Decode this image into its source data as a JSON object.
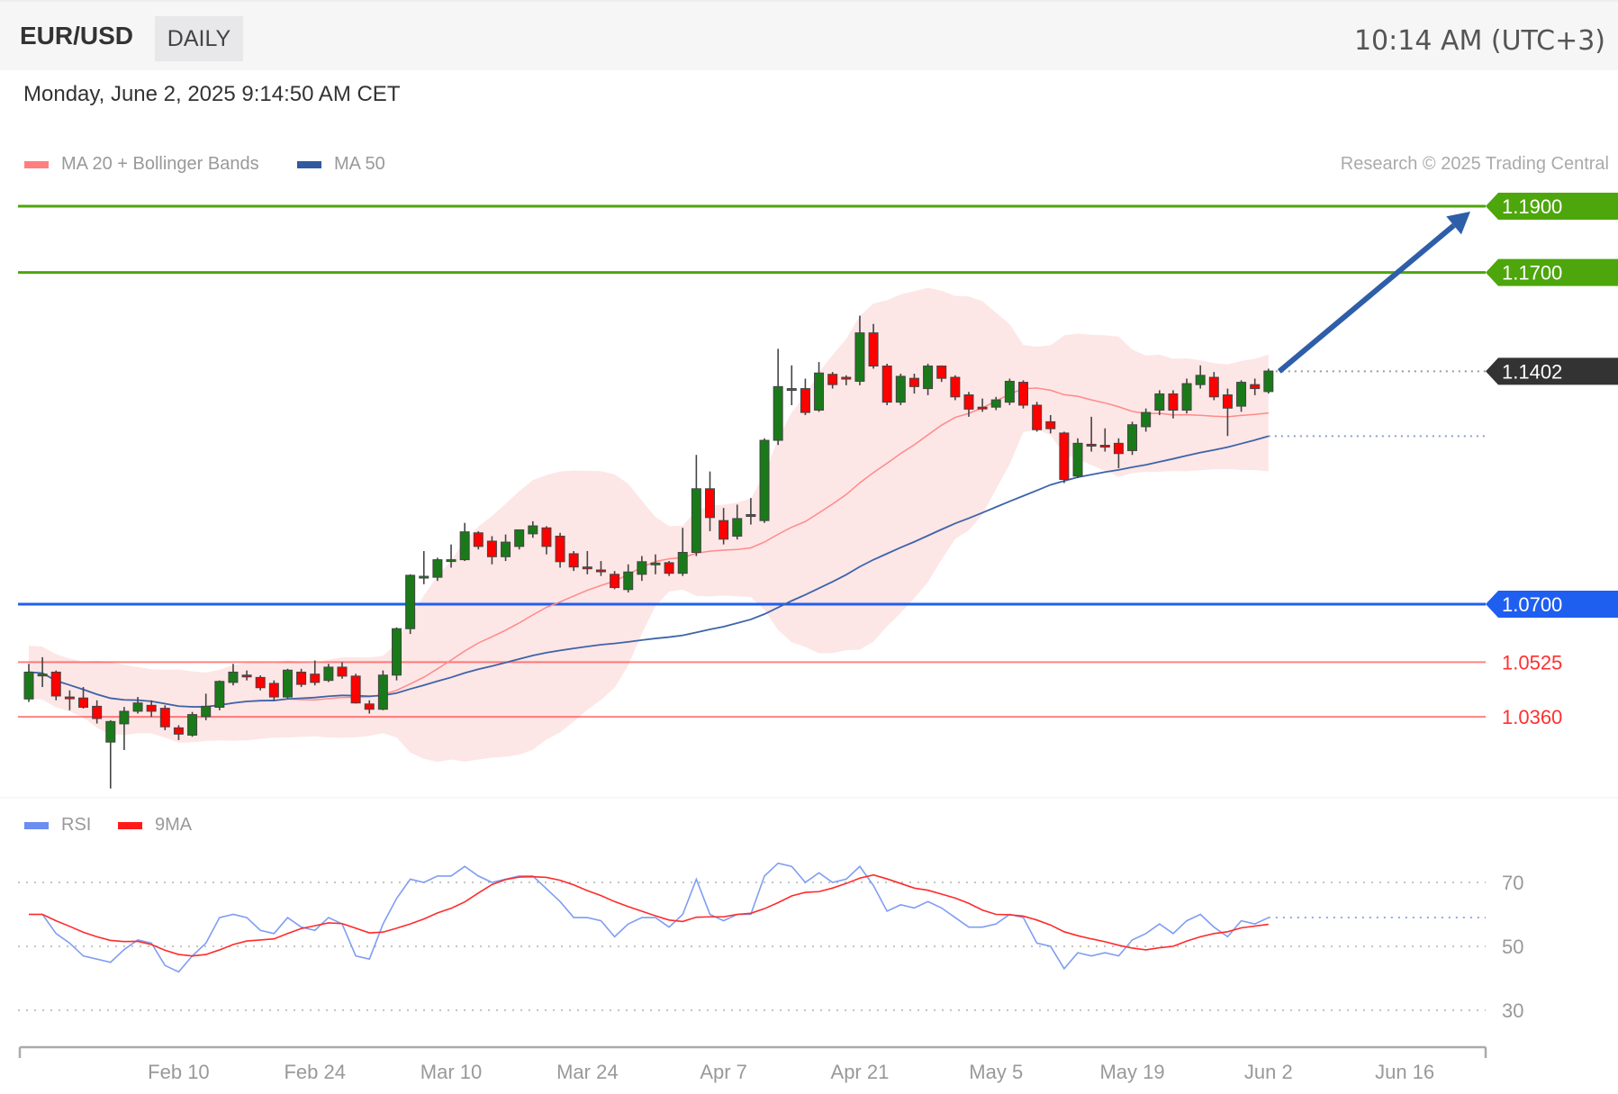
{
  "header": {
    "symbol": "EUR/USD",
    "period": "DAILY",
    "clock": "10:14 AM (UTC+3)"
  },
  "date_line": "Monday, June 2, 2025 9:14:50 AM CET",
  "legend": [
    {
      "label": "MA 20 + Bollinger Bands",
      "color": "#ff7f7f"
    },
    {
      "label": "MA 50",
      "color": "#2f5aa0"
    }
  ],
  "rsi_legend": [
    {
      "label": "RSI",
      "color": "#6b8ef0"
    },
    {
      "label": "9MA",
      "color": "#ff1a1a"
    }
  ],
  "copyright": "Research © 2025 Trading Central",
  "colors": {
    "up": "#1a7a1a",
    "down": "#ff0000",
    "band": "#fde3e3",
    "ma20": "#ff8a8a",
    "ma50": "#3d64a8",
    "arrow": "#2e5ea8"
  },
  "chart_data": [
    {
      "type": "candlestick",
      "title": "EUR/USD",
      "timeframe": "DAILY",
      "ylim": [
        1.005,
        1.19
      ],
      "x_ticks": [
        "Feb 10",
        "Feb 24",
        "Mar 10",
        "Mar 24",
        "Apr 7",
        "Apr 21",
        "May 5",
        "May 19",
        "Jun 2",
        "Jun 16"
      ],
      "x_tick_index": [
        11,
        21,
        31,
        41,
        51,
        61,
        71,
        81,
        91,
        101
      ],
      "ohlc": [
        [
          1.0414,
          1.052,
          1.0405,
          1.0495
        ],
        [
          1.0486,
          1.054,
          1.045,
          1.0489
        ],
        [
          1.0495,
          1.05,
          1.041,
          1.0423
        ],
        [
          1.042,
          1.044,
          1.038,
          1.0417
        ],
        [
          1.0417,
          1.045,
          1.0385,
          1.0389
        ],
        [
          1.0392,
          1.041,
          1.034,
          1.0355
        ],
        [
          1.0284,
          1.035,
          1.0144,
          1.0346
        ],
        [
          1.0339,
          1.039,
          1.026,
          1.0377
        ],
        [
          1.0377,
          1.042,
          1.037,
          1.0402
        ],
        [
          1.0395,
          1.041,
          1.036,
          1.0377
        ],
        [
          1.0386,
          1.0395,
          1.032,
          1.033
        ],
        [
          1.0327,
          1.0335,
          1.029,
          1.0308
        ],
        [
          1.0305,
          1.0375,
          1.03,
          1.0367
        ],
        [
          1.0361,
          1.043,
          1.035,
          1.0392
        ],
        [
          1.0389,
          1.047,
          1.038,
          1.0467
        ],
        [
          1.0464,
          1.052,
          1.0455,
          1.0495
        ],
        [
          1.0486,
          1.05,
          1.047,
          1.0483
        ],
        [
          1.0479,
          1.0485,
          1.044,
          1.0448
        ],
        [
          1.0461,
          1.047,
          1.041,
          1.042
        ],
        [
          1.042,
          1.0505,
          1.0415,
          1.0501
        ],
        [
          1.0495,
          1.0505,
          1.045,
          1.0458
        ],
        [
          1.0489,
          1.053,
          1.0455,
          1.0464
        ],
        [
          1.047,
          1.052,
          1.0465,
          1.051
        ],
        [
          1.051,
          1.0525,
          1.0475,
          1.0483
        ],
        [
          1.0483,
          1.049,
          1.04,
          1.0402
        ],
        [
          1.0399,
          1.041,
          1.037,
          1.0383
        ],
        [
          1.0383,
          1.05,
          1.038,
          1.0486
        ],
        [
          1.0486,
          1.063,
          1.047,
          1.0626
        ],
        [
          1.0626,
          1.079,
          1.061,
          1.0787
        ],
        [
          1.0781,
          1.086,
          1.076,
          1.0784
        ],
        [
          1.0781,
          1.084,
          1.077,
          1.0834
        ],
        [
          1.0831,
          1.088,
          1.081,
          1.0834
        ],
        [
          1.0834,
          1.0945,
          1.083,
          1.0918
        ],
        [
          1.0915,
          1.092,
          1.0865,
          1.0874
        ],
        [
          1.089,
          1.0905,
          1.082,
          1.0843
        ],
        [
          1.0843,
          1.091,
          1.083,
          1.0887
        ],
        [
          1.0874,
          1.0925,
          1.0865,
          1.0924
        ],
        [
          1.0912,
          1.095,
          1.09,
          1.0936
        ],
        [
          1.093,
          1.0935,
          1.085,
          1.0874
        ],
        [
          1.0905,
          1.0915,
          1.081,
          1.0828
        ],
        [
          1.0852,
          1.086,
          1.08,
          1.0812
        ],
        [
          1.0812,
          1.086,
          1.079,
          1.0809
        ],
        [
          1.0803,
          1.083,
          1.0785,
          1.08
        ],
        [
          1.079,
          1.08,
          1.0745,
          1.075
        ],
        [
          1.0744,
          1.082,
          1.0735,
          1.0797
        ],
        [
          1.079,
          1.0845,
          1.077,
          1.0828
        ],
        [
          1.0821,
          1.085,
          1.079,
          1.0824
        ],
        [
          1.0825,
          1.083,
          1.0785,
          1.0793
        ],
        [
          1.0793,
          1.093,
          1.0785,
          1.0856
        ],
        [
          1.0856,
          1.115,
          1.0845,
          1.1048
        ],
        [
          1.1048,
          1.11,
          1.092,
          1.0961
        ],
        [
          1.0952,
          1.099,
          1.088,
          1.0896
        ],
        [
          1.0905,
          1.1,
          1.0895,
          1.0958
        ],
        [
          1.0967,
          1.102,
          1.094,
          1.097
        ],
        [
          1.0952,
          1.12,
          1.0945,
          1.1194
        ],
        [
          1.1194,
          1.147,
          1.118,
          1.1356
        ],
        [
          1.1347,
          1.142,
          1.13,
          1.135
        ],
        [
          1.135,
          1.138,
          1.127,
          1.1278
        ],
        [
          1.1285,
          1.143,
          1.128,
          1.1397
        ],
        [
          1.1393,
          1.14,
          1.135,
          1.1362
        ],
        [
          1.1384,
          1.139,
          1.136,
          1.1381
        ],
        [
          1.1372,
          1.157,
          1.136,
          1.1518
        ],
        [
          1.1518,
          1.1545,
          1.141,
          1.1418
        ],
        [
          1.1418,
          1.1425,
          1.13,
          1.1309
        ],
        [
          1.1309,
          1.1395,
          1.13,
          1.1387
        ],
        [
          1.1381,
          1.1395,
          1.1335,
          1.1356
        ],
        [
          1.135,
          1.1425,
          1.133,
          1.1418
        ],
        [
          1.1418,
          1.142,
          1.137,
          1.1381
        ],
        [
          1.1384,
          1.139,
          1.1315,
          1.1325
        ],
        [
          1.1331,
          1.134,
          1.1265,
          1.1288
        ],
        [
          1.1294,
          1.132,
          1.128,
          1.1291
        ],
        [
          1.1294,
          1.1325,
          1.1285,
          1.1316
        ],
        [
          1.1309,
          1.138,
          1.13,
          1.1372
        ],
        [
          1.1369,
          1.1375,
          1.129,
          1.13
        ],
        [
          1.13,
          1.131,
          1.122,
          1.1226
        ],
        [
          1.125,
          1.127,
          1.1215,
          1.1229
        ],
        [
          1.1216,
          1.122,
          1.1065,
          1.1076
        ],
        [
          1.1086,
          1.12,
          1.108,
          1.1185
        ],
        [
          1.1182,
          1.1265,
          1.116,
          1.1179
        ],
        [
          1.1179,
          1.123,
          1.116,
          1.1176
        ],
        [
          1.1185,
          1.12,
          1.111,
          1.1154
        ],
        [
          1.1163,
          1.125,
          1.115,
          1.1241
        ],
        [
          1.1235,
          1.129,
          1.122,
          1.1278
        ],
        [
          1.1285,
          1.1345,
          1.127,
          1.1334
        ],
        [
          1.1334,
          1.1345,
          1.126,
          1.1285
        ],
        [
          1.1285,
          1.138,
          1.1275,
          1.1365
        ],
        [
          1.1362,
          1.142,
          1.135,
          1.139
        ],
        [
          1.1384,
          1.14,
          1.1315,
          1.1325
        ],
        [
          1.1331,
          1.135,
          1.1207,
          1.1291
        ],
        [
          1.1297,
          1.1375,
          1.128,
          1.1369
        ],
        [
          1.1362,
          1.138,
          1.133,
          1.135
        ],
        [
          1.1341,
          1.141,
          1.1335,
          1.1403
        ]
      ],
      "levels": [
        {
          "value": 1.19,
          "label": "1.1900",
          "color": "#4da60b",
          "style": "tag"
        },
        {
          "value": 1.17,
          "label": "1.1700",
          "color": "#4da60b",
          "style": "tag"
        },
        {
          "value": 1.1402,
          "label": "1.1402",
          "color": "#333333",
          "style": "tag-current"
        },
        {
          "value": 1.07,
          "label": "1.0700",
          "color": "#1f5ff0",
          "style": "tag"
        },
        {
          "value": 1.0525,
          "label": "1.0525",
          "color": "#ff3030",
          "style": "text"
        },
        {
          "value": 1.036,
          "label": "1.0360",
          "color": "#ff3030",
          "style": "text"
        }
      ],
      "forecast_arrow": {
        "from": 1.1402,
        "to": 1.19
      }
    },
    {
      "type": "line",
      "series": [
        {
          "name": "RSI"
        },
        {
          "name": "9MA"
        }
      ],
      "ylim": [
        25,
        80
      ],
      "y_ticks": [
        70,
        50,
        30
      ],
      "rsi": [
        60,
        60,
        54,
        51,
        47,
        46,
        45,
        49,
        52,
        51,
        44,
        42,
        47,
        51,
        59,
        60,
        59,
        55,
        54,
        59,
        56,
        55,
        59,
        57,
        47,
        46,
        57,
        65,
        71,
        70,
        72,
        72,
        75,
        72,
        70,
        71,
        72,
        72,
        68,
        64,
        59,
        59,
        58,
        53,
        57,
        59,
        59,
        56,
        60,
        71,
        60,
        58,
        60,
        60,
        72,
        76,
        75,
        70,
        73,
        70,
        71,
        75,
        69,
        61,
        63,
        62,
        64,
        62,
        59,
        56,
        56,
        57,
        60,
        59,
        51,
        50,
        43,
        48,
        47,
        48,
        47,
        52,
        54,
        57,
        54,
        58,
        60,
        56,
        53,
        58,
        57,
        59
      ]
    }
  ]
}
